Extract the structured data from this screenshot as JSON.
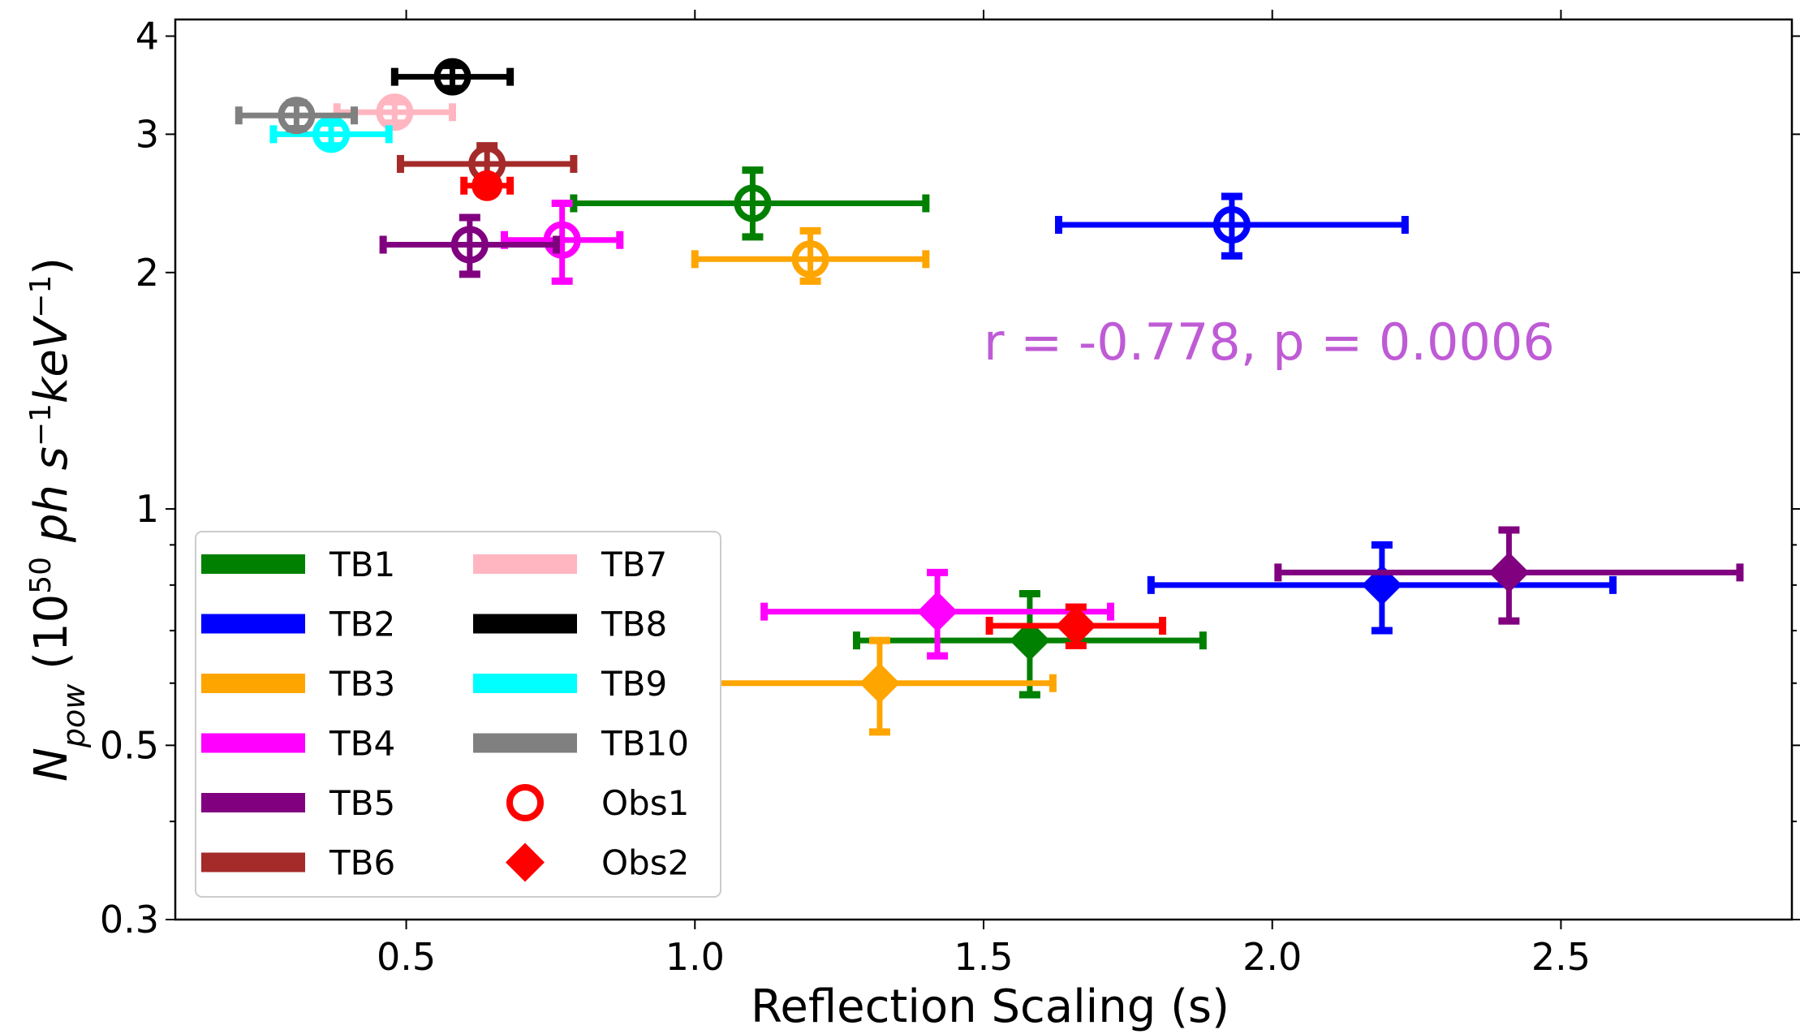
{
  "chart_data": {
    "type": "scatter",
    "title": "",
    "xlabel": "Reflection Scaling (s)",
    "ylabel": {
      "symbol": "N",
      "symbol_sub": "pow",
      "open": " (10",
      "exp50": "50",
      "ph": " ph ",
      "s": "s",
      "sexp": "−1",
      "kev": "keV",
      "kevexp": "−1",
      "close": ")"
    },
    "xlim": [
      0.1,
      2.9
    ],
    "ylim": [
      0.3,
      4.2
    ],
    "yscale": "log",
    "x_ticks": [
      {
        "value": 0.5,
        "label": "0.5"
      },
      {
        "value": 1.0,
        "label": "1.0"
      },
      {
        "value": 1.5,
        "label": "1.5"
      },
      {
        "value": 2.0,
        "label": "2.0"
      },
      {
        "value": 2.5,
        "label": "2.5"
      }
    ],
    "y_ticks": [
      {
        "value": 0.3,
        "label": "0.3"
      },
      {
        "value": 0.5,
        "label": "0.5"
      },
      {
        "value": 1,
        "label": "1"
      },
      {
        "value": 2,
        "label": "2"
      },
      {
        "value": 3,
        "label": "3"
      },
      {
        "value": 4,
        "label": "4"
      }
    ],
    "y_minor_ticks": [
      0.4,
      0.6,
      0.7,
      0.8,
      0.9
    ],
    "annotation": {
      "text": "r = -0.778, p = 0.0006",
      "x": 1.5,
      "y": 1.55,
      "color": "#bf5bd5"
    },
    "series": [
      {
        "name": "TB1",
        "color": "#008000",
        "obs1": {
          "x": 1.1,
          "y": 2.45,
          "xerr": [
            0.31,
            0.3
          ],
          "yerr": [
            0.23,
            0.25
          ]
        },
        "obs2": {
          "x": 1.58,
          "y": 0.68,
          "xerr": [
            0.3,
            0.3
          ],
          "yerr": [
            0.1,
            0.1
          ]
        }
      },
      {
        "name": "TB2",
        "color": "#0000ff",
        "obs1": {
          "x": 1.93,
          "y": 2.3,
          "xerr": [
            0.3,
            0.3
          ],
          "yerr": [
            0.2,
            0.2
          ]
        },
        "obs2": {
          "x": 2.19,
          "y": 0.8,
          "xerr": [
            0.4,
            0.4
          ],
          "yerr": [
            0.1,
            0.1
          ]
        }
      },
      {
        "name": "TB3",
        "color": "#ffa500",
        "obs1": {
          "x": 1.2,
          "y": 2.08,
          "xerr": [
            0.2,
            0.2
          ],
          "yerr": [
            0.13,
            0.18
          ]
        },
        "obs2": {
          "x": 1.32,
          "y": 0.6,
          "xerr": [
            0.3,
            0.3
          ],
          "yerr": [
            0.08,
            0.08
          ]
        }
      },
      {
        "name": "TB4",
        "color": "#ff00ff",
        "obs1": {
          "x": 0.77,
          "y": 2.2,
          "xerr": [
            0.1,
            0.1
          ],
          "yerr": [
            0.25,
            0.25
          ]
        },
        "obs2": {
          "x": 1.42,
          "y": 0.74,
          "xerr": [
            0.3,
            0.3
          ],
          "yerr": [
            0.09,
            0.09
          ]
        }
      },
      {
        "name": "TB5",
        "color": "#800080",
        "obs1": {
          "x": 0.61,
          "y": 2.17,
          "xerr": [
            0.15,
            0.15
          ],
          "yerr": [
            0.18,
            0.18
          ]
        },
        "obs2": {
          "x": 2.41,
          "y": 0.83,
          "xerr": [
            0.4,
            0.4
          ],
          "yerr": [
            0.11,
            0.11
          ]
        }
      },
      {
        "name": "TB6",
        "color": "#a52a2a",
        "obs1": {
          "x": 0.64,
          "y": 2.75,
          "xerr": [
            0.15,
            0.15
          ],
          "yerr": [
            0.15,
            0.15
          ]
        },
        "obs2": null
      },
      {
        "name": "TB7",
        "color": "#ffb6c1",
        "obs1": {
          "x": 0.48,
          "y": 3.2,
          "xerr": [
            0.1,
            0.1
          ],
          "yerr": [
            0.1,
            0.1
          ]
        },
        "obs2": null
      },
      {
        "name": "TB8",
        "color": "#000000",
        "obs1": {
          "x": 0.58,
          "y": 3.55,
          "xerr": [
            0.1,
            0.1
          ],
          "yerr": [
            0.12,
            0.12
          ]
        },
        "obs2": null
      },
      {
        "name": "TB9",
        "color": "#00ffff",
        "obs1": {
          "x": 0.37,
          "y": 3.0,
          "xerr": [
            0.1,
            0.1
          ],
          "yerr": [
            0.1,
            0.1
          ]
        },
        "obs2": null
      },
      {
        "name": "TB10",
        "color": "#808080",
        "obs1": {
          "x": 0.31,
          "y": 3.17,
          "xerr": [
            0.1,
            0.1
          ],
          "yerr": [
            0.12,
            0.12
          ]
        },
        "obs2": null
      },
      {
        "name": "",
        "color": "#ff0000",
        "obs1": {
          "x": 0.64,
          "y": 2.58,
          "xerr": [
            0.04,
            0.04
          ],
          "yerr": [
            0.06,
            0.06
          ],
          "filled": true
        },
        "obs2": {
          "x": 1.66,
          "y": 0.71,
          "xerr": [
            0.15,
            0.15
          ],
          "yerr": [
            0.04,
            0.04
          ]
        }
      }
    ],
    "legend": {
      "position": "lower-left",
      "columns": [
        [
          {
            "label": "TB1",
            "color": "#008000",
            "kind": "line"
          },
          {
            "label": "TB2",
            "color": "#0000ff",
            "kind": "line"
          },
          {
            "label": "TB3",
            "color": "#ffa500",
            "kind": "line"
          },
          {
            "label": "TB4",
            "color": "#ff00ff",
            "kind": "line"
          },
          {
            "label": "TB5",
            "color": "#800080",
            "kind": "line"
          },
          {
            "label": "TB6",
            "color": "#a52a2a",
            "kind": "line"
          }
        ],
        [
          {
            "label": "TB7",
            "color": "#ffb6c1",
            "kind": "line"
          },
          {
            "label": "TB8",
            "color": "#000000",
            "kind": "line"
          },
          {
            "label": "TB9",
            "color": "#00ffff",
            "kind": "line"
          },
          {
            "label": "TB10",
            "color": "#808080",
            "kind": "line"
          },
          {
            "label": "Obs1",
            "color": "#ff0000",
            "kind": "circle"
          },
          {
            "label": "Obs2",
            "color": "#ff0000",
            "kind": "diamond"
          }
        ]
      ]
    }
  }
}
